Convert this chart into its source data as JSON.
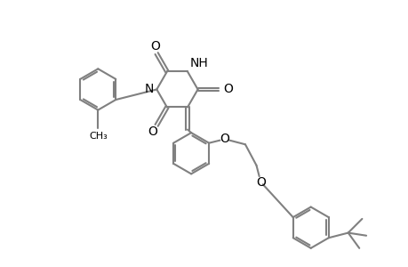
{
  "bg_color": "#ffffff",
  "line_color": "#808080",
  "text_color": "#000000",
  "line_width": 1.5,
  "font_size": 9,
  "xlim": [
    -2.4,
    2.6
  ],
  "ylim": [
    -0.8,
    2.8
  ]
}
